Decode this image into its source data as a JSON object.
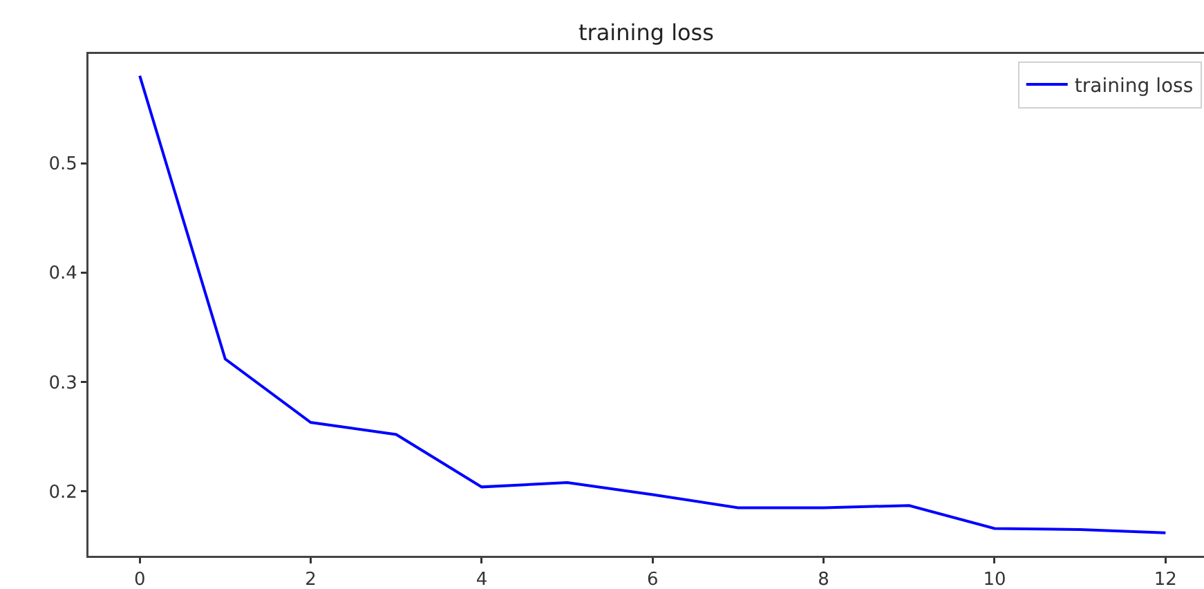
{
  "chart_data": {
    "type": "line",
    "title": "training loss",
    "x": [
      0,
      1,
      2,
      3,
      4,
      5,
      6,
      7,
      8,
      9,
      10,
      11,
      12
    ],
    "series": [
      {
        "name": "training loss",
        "color": "#0000ff",
        "values": [
          0.58,
          0.321,
          0.263,
          0.252,
          0.204,
          0.208,
          0.197,
          0.185,
          0.185,
          0.187,
          0.166,
          0.165,
          0.162
        ]
      }
    ],
    "xlim": [
      -0.6,
      12.45
    ],
    "xticks": [
      0,
      2,
      4,
      6,
      8,
      10,
      12
    ],
    "ylim": [
      0.141,
      0.6
    ],
    "yticks": [
      0.2,
      0.3,
      0.4,
      0.5
    ],
    "legend": "top right"
  }
}
